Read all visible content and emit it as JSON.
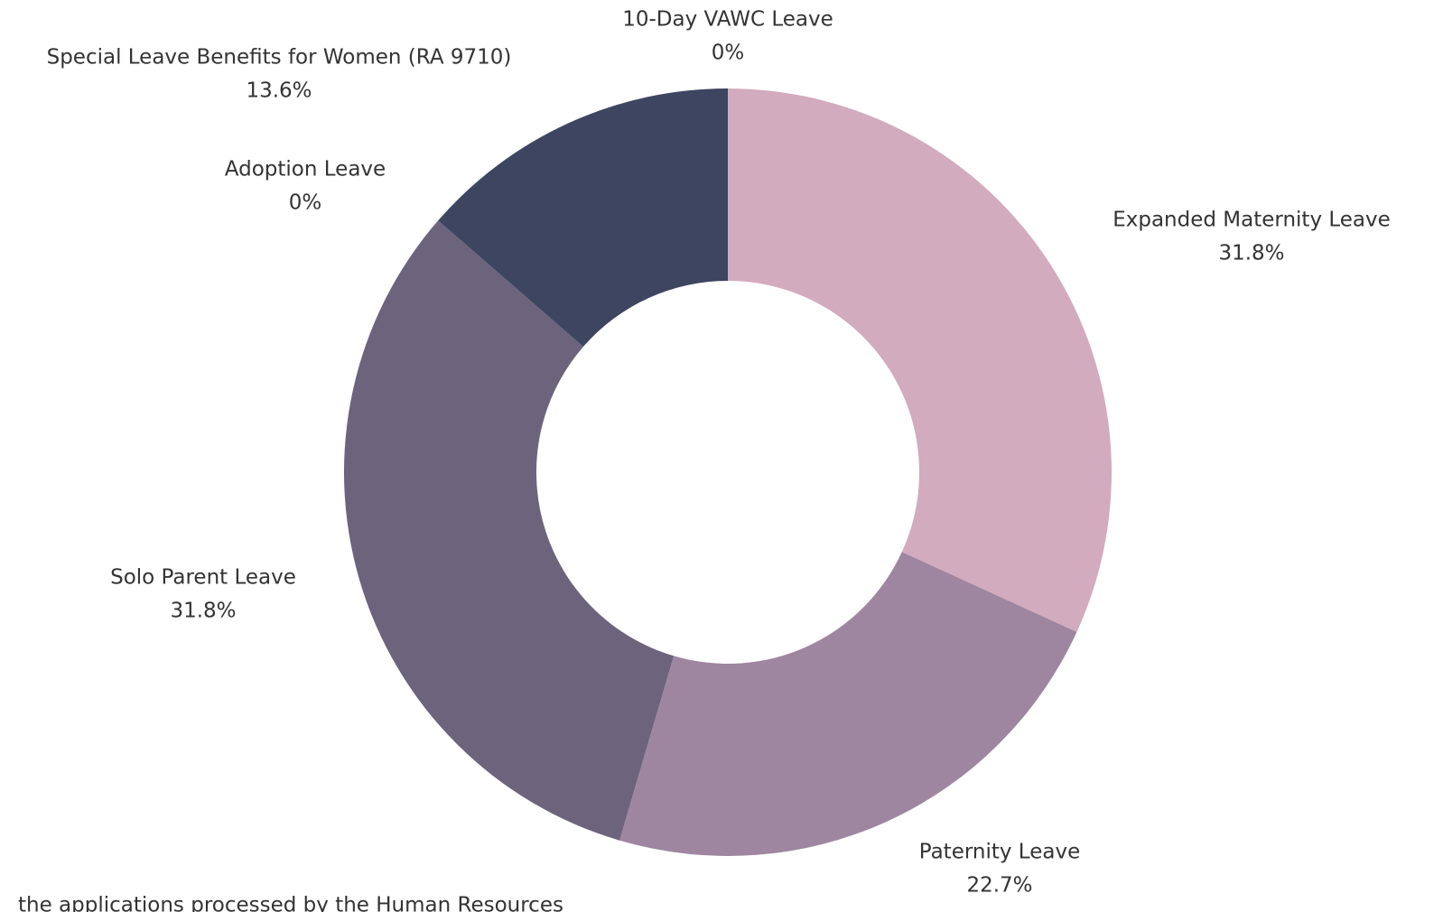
{
  "chart_data": {
    "type": "donut",
    "categories": [
      "Expanded Maternity Leave",
      "Paternity Leave",
      "Solo Parent Leave",
      "Adoption Leave",
      "Special Leave Benefits for Women (RA 9710)",
      "10-Day VAWC Leave"
    ],
    "values": [
      31.8,
      22.7,
      31.8,
      0,
      13.6,
      0
    ],
    "value_labels": [
      "31.8%",
      "22.7%",
      "31.8%",
      "0%",
      "13.6%",
      "0%"
    ],
    "colors": [
      "#d2abbe",
      "#9e86a0",
      "#6c637d",
      "#57536e",
      "#3d4560",
      "#2f3550"
    ],
    "note": "the applications processed by the Human Resources"
  }
}
